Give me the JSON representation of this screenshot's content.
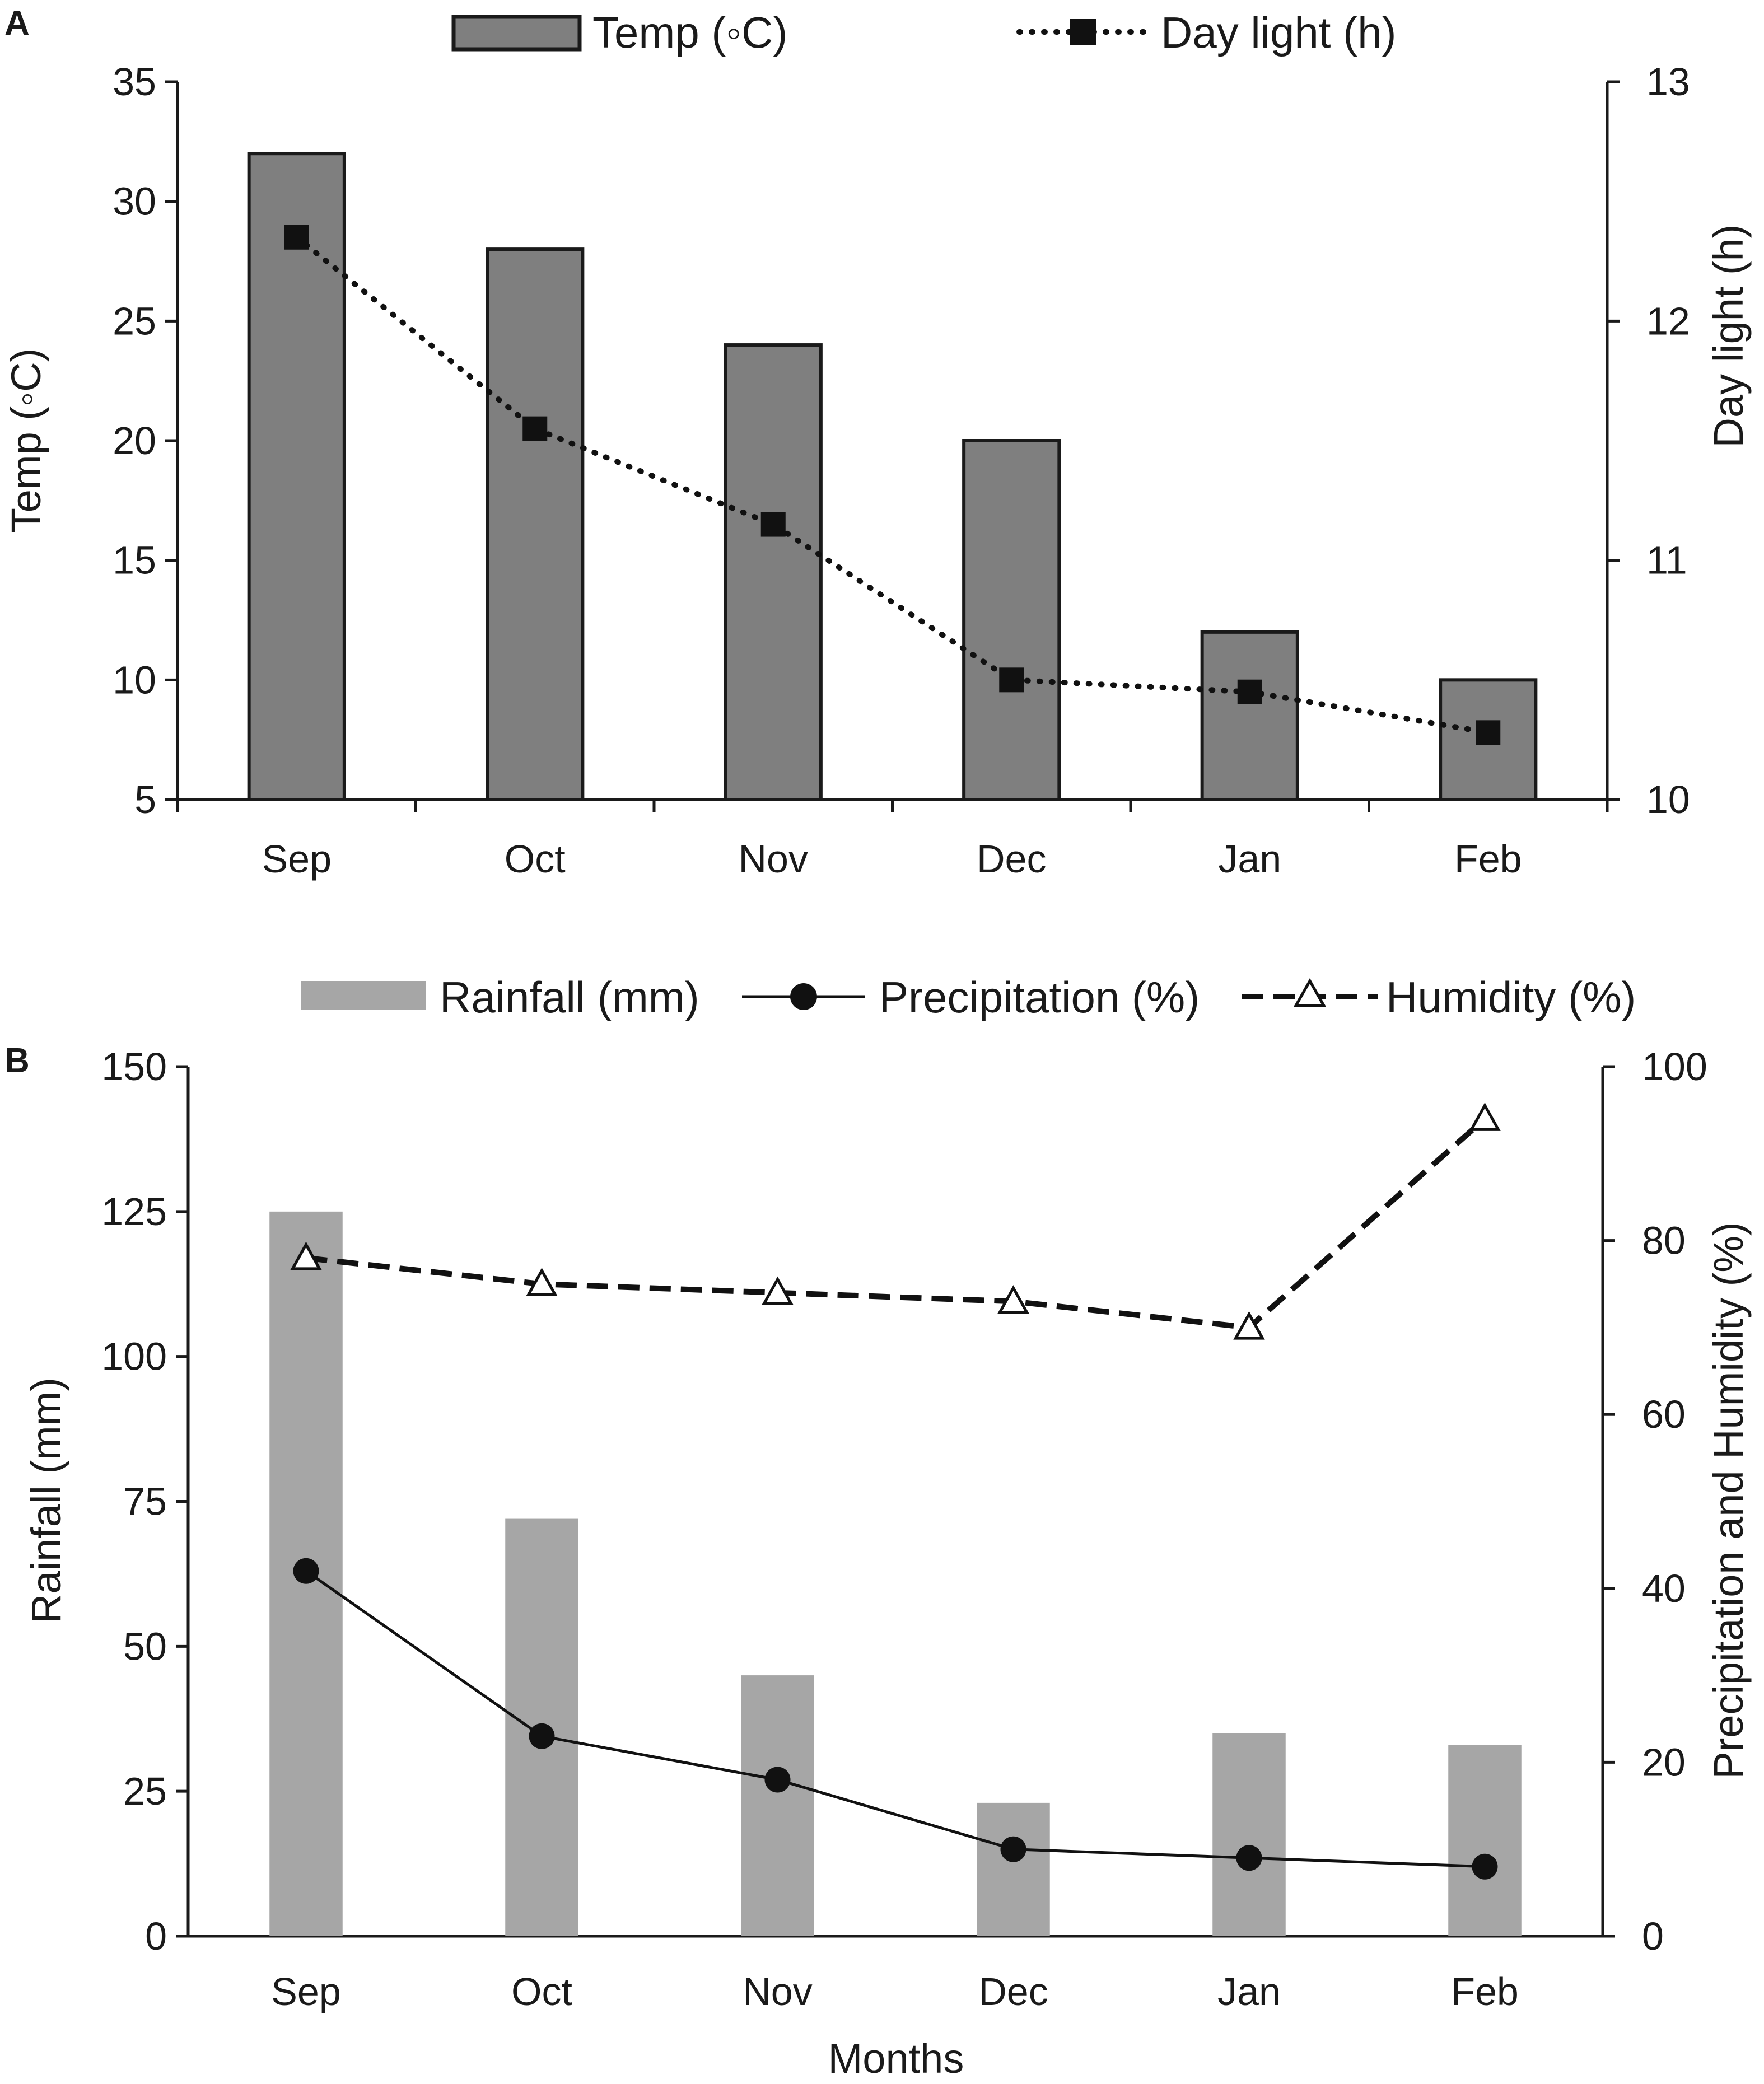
{
  "chart_data": [
    {
      "panel": "A",
      "type": "bar+line",
      "categories": [
        "Sep",
        "Oct",
        "Nov",
        "Dec",
        "Jan",
        "Feb"
      ],
      "series": [
        {
          "name": "Temp (◦C)",
          "type": "bar",
          "axis": "left",
          "values": [
            32,
            28,
            24,
            20,
            12,
            10
          ],
          "color": "#7f7f7f"
        },
        {
          "name": "Day light (h)",
          "type": "line",
          "axis": "right",
          "marker": "square",
          "linestyle": "dotted",
          "values": [
            12.35,
            11.55,
            11.15,
            10.5,
            10.45,
            10.28
          ],
          "color": "#111111"
        }
      ],
      "ylabel": "Temp (◦C)",
      "y2label": "Day light (h)",
      "ylim": [
        5,
        35
      ],
      "y2lim": [
        10,
        13
      ],
      "yticks": [
        "5",
        "10",
        "15",
        "20",
        "25",
        "30",
        "35"
      ],
      "y2ticks": [
        "10",
        "11",
        "12",
        "13"
      ],
      "legend": "top-center"
    },
    {
      "panel": "B",
      "type": "bar+line",
      "categories": [
        "Sep",
        "Oct",
        "Nov",
        "Dec",
        "Jan",
        "Feb"
      ],
      "series": [
        {
          "name": "Rainfall (mm)",
          "type": "bar",
          "axis": "left",
          "values": [
            125,
            72,
            45,
            23,
            35,
            33
          ],
          "color": "#a6a6a6"
        },
        {
          "name": "Precipitation (%)",
          "type": "line",
          "axis": "right",
          "marker": "circle",
          "linestyle": "solid",
          "values": [
            42,
            23,
            18,
            10,
            9,
            8
          ],
          "color": "#111111"
        },
        {
          "name": "Humidity (%)",
          "type": "line",
          "axis": "right",
          "marker": "triangle",
          "linestyle": "dashed",
          "values": [
            78,
            75,
            74,
            73,
            70,
            94
          ],
          "color": "#111111"
        }
      ],
      "ylabel": "Rainfall  (mm)",
      "y2label": "Precipitation and Humidity (%)",
      "xlabel": "Months",
      "ylim": [
        0,
        150
      ],
      "y2lim": [
        0,
        100
      ],
      "yticks": [
        "0",
        "25",
        "50",
        "75",
        "100",
        "125",
        "150"
      ],
      "y2ticks": [
        "0",
        "20",
        "40",
        "60",
        "80",
        "100"
      ],
      "legend": "top-center"
    }
  ]
}
